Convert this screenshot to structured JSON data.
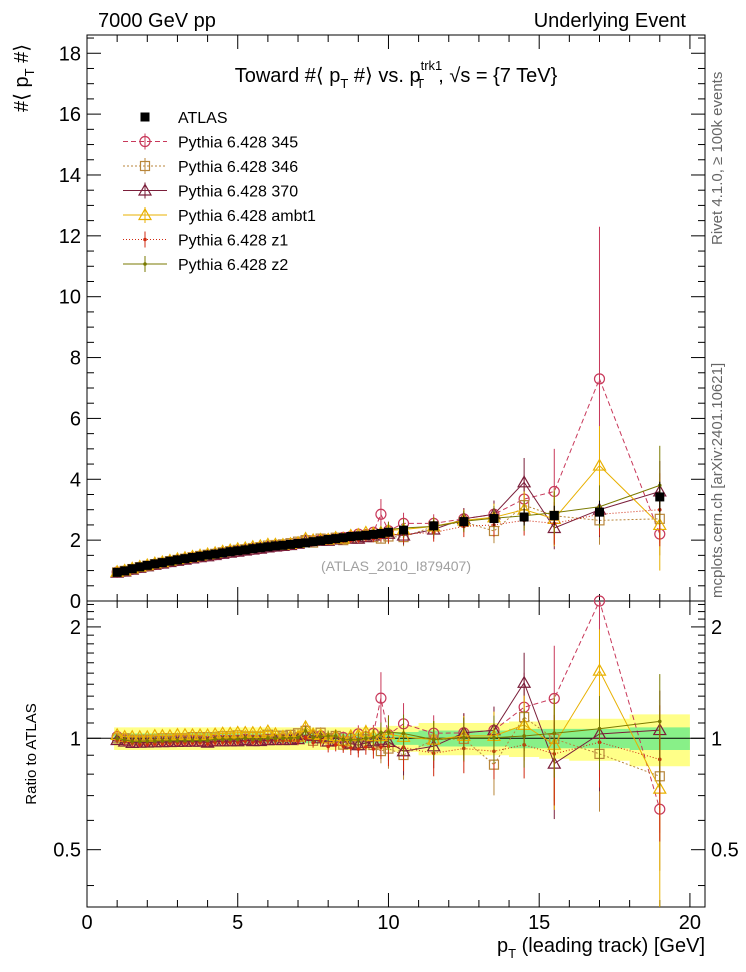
{
  "header": {
    "left": "7000 GeV pp",
    "right": "Underlying Event",
    "side_top": "Rivet 4.1.0, ≥ 100k events",
    "side_bottom": "mcplots.cern.ch [arXiv:2401.10621]"
  },
  "chart_data": {
    "type": "line",
    "title": "Toward #⟨ p_T #⟩ vs. p_T^trk1, √s = {7 TeV}",
    "title_parts": {
      "a": "Toward #⟨ p",
      "sub1": "T",
      "b": " #⟩ vs. p",
      "sup": "trk1",
      "sub2": "T",
      "c": ", √s = {7 TeV}"
    },
    "ylabel_parts": {
      "a": "#⟨ p",
      "sub": "T",
      "b": " #⟩"
    },
    "xlabel_parts": {
      "a": "p",
      "sub": "T",
      "b": " (leading track) [GeV]"
    },
    "ratio_ylabel": "Ratio to ATLAS",
    "watermark": "(ATLAS_2010_I879407)",
    "xlim": [
      0,
      20.5
    ],
    "ylim": [
      0,
      18.6
    ],
    "ratio_ylim": [
      0.35,
      2.35
    ],
    "x_ticks": [
      0,
      5,
      10,
      15,
      20
    ],
    "x_tick_labels": [
      "0",
      "5",
      "10",
      "15",
      "20"
    ],
    "y_ticks": [
      0,
      2,
      4,
      6,
      8,
      10,
      12,
      14,
      16,
      18
    ],
    "y_tick_labels": [
      "0",
      "2",
      "4",
      "6",
      "8",
      "10",
      "12",
      "14",
      "16",
      "18"
    ],
    "ratio_ticks": [
      0.5,
      1,
      2
    ],
    "ratio_tick_labels": [
      "0.5",
      "1",
      "2"
    ],
    "x": [
      1.0,
      1.25,
      1.5,
      1.75,
      2.0,
      2.25,
      2.5,
      2.75,
      3.0,
      3.25,
      3.5,
      3.75,
      4.0,
      4.25,
      4.5,
      4.75,
      5.0,
      5.25,
      5.5,
      5.75,
      6.0,
      6.25,
      6.5,
      6.75,
      7.0,
      7.25,
      7.5,
      7.75,
      8.0,
      8.25,
      8.5,
      8.75,
      9.0,
      9.25,
      9.5,
      9.75,
      10.0,
      10.5,
      11.5,
      12.5,
      13.5,
      14.5,
      15.5,
      17.0,
      19.0
    ],
    "data": {
      "name": "ATLAS",
      "values": [
        0.94,
        0.99,
        1.06,
        1.12,
        1.17,
        1.22,
        1.26,
        1.31,
        1.35,
        1.39,
        1.43,
        1.47,
        1.51,
        1.54,
        1.58,
        1.62,
        1.65,
        1.68,
        1.72,
        1.75,
        1.78,
        1.81,
        1.83,
        1.86,
        1.89,
        1.91,
        1.95,
        1.98,
        2.02,
        2.05,
        2.08,
        2.12,
        2.14,
        2.16,
        2.19,
        2.22,
        2.26,
        2.33,
        2.47,
        2.61,
        2.71,
        2.76,
        2.81,
        2.92,
        3.42
      ],
      "errors": [
        0.03,
        0.03,
        0.03,
        0.03,
        0.03,
        0.03,
        0.03,
        0.03,
        0.03,
        0.03,
        0.03,
        0.03,
        0.03,
        0.03,
        0.03,
        0.03,
        0.03,
        0.03,
        0.04,
        0.04,
        0.04,
        0.04,
        0.04,
        0.05,
        0.05,
        0.05,
        0.05,
        0.06,
        0.06,
        0.06,
        0.06,
        0.07,
        0.08,
        0.08,
        0.09,
        0.1,
        0.12,
        0.14,
        0.17,
        0.2,
        0.24,
        0.28,
        0.32,
        0.38,
        0.5
      ]
    },
    "band_edges": [
      0.9,
      10.0,
      11.0,
      12.0,
      13.0,
      14.0,
      15.0,
      16.0,
      18.0,
      20.0
    ],
    "band_inner": [
      0.03,
      0.04,
      0.05,
      0.05,
      0.05,
      0.06,
      0.06,
      0.06,
      0.07,
      0.07
    ],
    "band_outer": [
      0.07,
      0.08,
      0.1,
      0.1,
      0.1,
      0.11,
      0.12,
      0.13,
      0.16,
      0.18
    ],
    "series": [
      {
        "name": "Pythia 6.428 345",
        "color": "#c8385a",
        "marker": "circle",
        "dash": "5,3",
        "values": [
          0.95,
          0.98,
          1.04,
          1.1,
          1.15,
          1.2,
          1.24,
          1.29,
          1.33,
          1.37,
          1.41,
          1.45,
          1.48,
          1.52,
          1.56,
          1.6,
          1.63,
          1.67,
          1.7,
          1.73,
          1.77,
          1.8,
          1.82,
          1.85,
          1.9,
          2.0,
          1.98,
          2.01,
          2.02,
          2.06,
          2.09,
          2.12,
          2.2,
          2.18,
          2.26,
          2.85,
          2.31,
          2.55,
          2.55,
          2.7,
          2.85,
          3.35,
          3.6,
          7.3,
          2.2
        ],
        "errors": [
          0.02,
          0.02,
          0.02,
          0.02,
          0.02,
          0.02,
          0.02,
          0.02,
          0.02,
          0.02,
          0.02,
          0.02,
          0.02,
          0.03,
          0.03,
          0.03,
          0.03,
          0.03,
          0.03,
          0.03,
          0.04,
          0.04,
          0.04,
          0.04,
          0.05,
          0.06,
          0.06,
          0.07,
          0.07,
          0.08,
          0.08,
          0.09,
          0.12,
          0.1,
          0.12,
          0.5,
          0.3,
          0.35,
          0.3,
          0.35,
          0.45,
          0.8,
          1.4,
          5.0,
          0.3
        ]
      },
      {
        "name": "Pythia 6.428 346",
        "color": "#b8863b",
        "marker": "square",
        "dash": "2,2",
        "values": [
          0.94,
          0.99,
          1.05,
          1.11,
          1.16,
          1.21,
          1.26,
          1.31,
          1.35,
          1.39,
          1.44,
          1.48,
          1.52,
          1.55,
          1.6,
          1.64,
          1.68,
          1.7,
          1.74,
          1.77,
          1.82,
          1.84,
          1.86,
          1.9,
          1.95,
          2.0,
          1.92,
          2.05,
          2.02,
          2.08,
          2.0,
          2.06,
          2.05,
          2.15,
          2.1,
          2.05,
          2.12,
          2.1,
          2.45,
          2.6,
          2.3,
          3.15,
          2.8,
          2.65,
          2.7
        ],
        "errors": [
          0.02,
          0.02,
          0.02,
          0.02,
          0.02,
          0.02,
          0.02,
          0.02,
          0.02,
          0.02,
          0.02,
          0.02,
          0.02,
          0.03,
          0.03,
          0.03,
          0.03,
          0.03,
          0.03,
          0.03,
          0.04,
          0.04,
          0.04,
          0.04,
          0.05,
          0.06,
          0.06,
          0.07,
          0.07,
          0.08,
          0.08,
          0.09,
          0.1,
          0.1,
          0.12,
          0.15,
          0.25,
          0.3,
          0.3,
          0.35,
          0.4,
          0.6,
          0.9,
          0.8,
          1.2
        ]
      },
      {
        "name": "Pythia 6.428 370",
        "color": "#7a1e3a",
        "marker": "triangle",
        "dash": "",
        "values": [
          0.93,
          0.97,
          1.03,
          1.09,
          1.14,
          1.19,
          1.23,
          1.28,
          1.32,
          1.36,
          1.4,
          1.44,
          1.47,
          1.51,
          1.55,
          1.59,
          1.62,
          1.66,
          1.69,
          1.72,
          1.76,
          1.79,
          1.81,
          1.84,
          1.88,
          1.95,
          1.98,
          1.98,
          1.98,
          2.02,
          2.05,
          2.05,
          2.05,
          2.1,
          2.15,
          2.2,
          2.21,
          2.15,
          2.35,
          2.7,
          2.85,
          3.9,
          2.4,
          3.0,
          3.6
        ],
        "errors": [
          0.02,
          0.02,
          0.02,
          0.02,
          0.02,
          0.02,
          0.02,
          0.02,
          0.02,
          0.02,
          0.02,
          0.02,
          0.02,
          0.03,
          0.03,
          0.03,
          0.03,
          0.03,
          0.03,
          0.03,
          0.04,
          0.04,
          0.04,
          0.04,
          0.05,
          0.06,
          0.06,
          0.07,
          0.07,
          0.08,
          0.08,
          0.09,
          0.1,
          0.1,
          0.12,
          0.15,
          0.25,
          0.3,
          0.3,
          0.35,
          0.45,
          0.8,
          0.7,
          0.9,
          1.0
        ]
      },
      {
        "name": "Pythia 6.428 ambt1",
        "color": "#e8b000",
        "marker": "triangle",
        "dash": "",
        "values": [
          0.96,
          1.0,
          1.07,
          1.13,
          1.18,
          1.24,
          1.28,
          1.33,
          1.38,
          1.42,
          1.46,
          1.5,
          1.54,
          1.58,
          1.63,
          1.67,
          1.71,
          1.74,
          1.78,
          1.81,
          1.86,
          1.86,
          1.85,
          1.88,
          1.91,
          2.05,
          2.0,
          2.02,
          2.02,
          2.08,
          2.05,
          2.15,
          2.18,
          2.25,
          2.22,
          2.25,
          2.32,
          2.35,
          2.45,
          2.65,
          2.75,
          3.0,
          2.7,
          4.45,
          2.5
        ],
        "errors": [
          0.02,
          0.02,
          0.02,
          0.02,
          0.02,
          0.02,
          0.02,
          0.02,
          0.02,
          0.02,
          0.02,
          0.02,
          0.02,
          0.03,
          0.03,
          0.03,
          0.03,
          0.03,
          0.03,
          0.03,
          0.04,
          0.04,
          0.04,
          0.04,
          0.05,
          0.06,
          0.06,
          0.07,
          0.07,
          0.08,
          0.08,
          0.09,
          0.1,
          0.1,
          0.12,
          0.15,
          0.25,
          0.3,
          0.3,
          0.35,
          0.45,
          0.6,
          0.9,
          1.3,
          1.5
        ]
      },
      {
        "name": "Pythia 6.428 z1",
        "color": "#d02a10",
        "marker": "dot",
        "dash": "1,2",
        "values": [
          0.93,
          0.97,
          1.03,
          1.08,
          1.13,
          1.18,
          1.22,
          1.27,
          1.31,
          1.35,
          1.39,
          1.43,
          1.46,
          1.5,
          1.54,
          1.58,
          1.61,
          1.65,
          1.68,
          1.71,
          1.75,
          1.78,
          1.8,
          1.83,
          1.86,
          1.92,
          1.9,
          1.95,
          1.92,
          1.97,
          1.98,
          2.0,
          2.0,
          2.05,
          2.05,
          2.1,
          2.15,
          2.2,
          2.25,
          2.45,
          2.5,
          2.65,
          2.55,
          2.85,
          3.0
        ],
        "errors": [
          0.02,
          0.02,
          0.02,
          0.02,
          0.02,
          0.02,
          0.02,
          0.02,
          0.02,
          0.02,
          0.02,
          0.02,
          0.02,
          0.03,
          0.03,
          0.03,
          0.03,
          0.03,
          0.03,
          0.03,
          0.04,
          0.04,
          0.04,
          0.04,
          0.05,
          0.06,
          0.06,
          0.07,
          0.07,
          0.08,
          0.08,
          0.09,
          0.1,
          0.1,
          0.12,
          0.15,
          0.25,
          0.3,
          0.3,
          0.35,
          0.4,
          0.5,
          0.7,
          0.7,
          1.2
        ]
      },
      {
        "name": "Pythia 6.428 z2",
        "color": "#7a7a00",
        "marker": "dot",
        "dash": "",
        "values": [
          0.94,
          0.98,
          1.04,
          1.1,
          1.15,
          1.2,
          1.24,
          1.29,
          1.33,
          1.37,
          1.41,
          1.45,
          1.49,
          1.53,
          1.57,
          1.61,
          1.64,
          1.68,
          1.71,
          1.74,
          1.78,
          1.81,
          1.83,
          1.86,
          1.9,
          2.0,
          1.96,
          2.0,
          2.05,
          2.08,
          2.06,
          2.1,
          2.12,
          2.16,
          2.2,
          2.3,
          2.35,
          2.4,
          2.45,
          2.62,
          2.72,
          2.8,
          2.9,
          3.1,
          3.8
        ],
        "errors": [
          0.02,
          0.02,
          0.02,
          0.02,
          0.02,
          0.02,
          0.02,
          0.02,
          0.02,
          0.02,
          0.02,
          0.02,
          0.02,
          0.03,
          0.03,
          0.03,
          0.03,
          0.03,
          0.03,
          0.03,
          0.04,
          0.04,
          0.04,
          0.04,
          0.05,
          0.06,
          0.06,
          0.07,
          0.07,
          0.08,
          0.08,
          0.09,
          0.1,
          0.1,
          0.12,
          0.15,
          0.25,
          0.3,
          0.3,
          0.35,
          0.4,
          0.5,
          0.7,
          0.7,
          1.3
        ]
      }
    ]
  }
}
